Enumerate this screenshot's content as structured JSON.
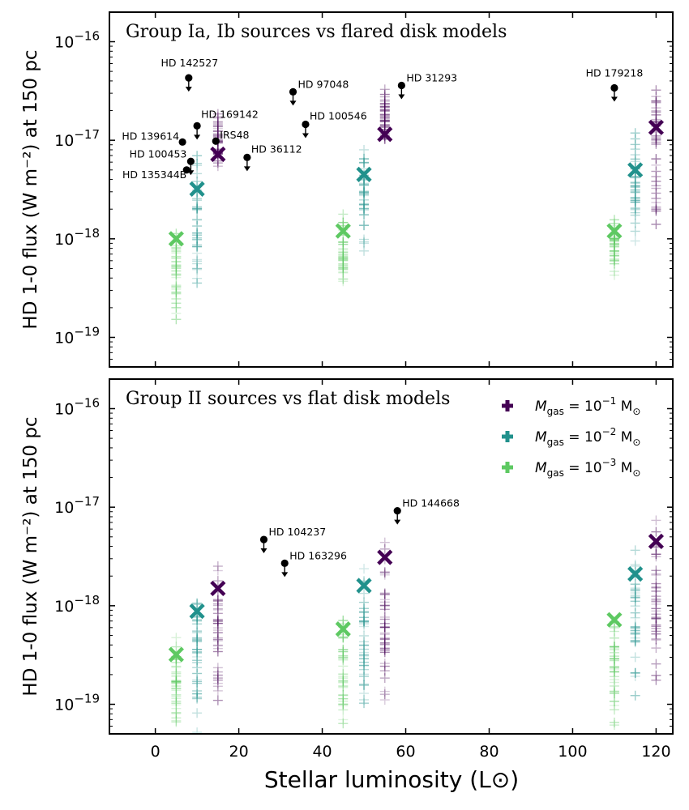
{
  "colors": {
    "high": "#440154",
    "mid": "#21918c",
    "low": "#5ec962",
    "source": "#000000"
  },
  "chart_data": [
    {
      "type": "scatter",
      "title": "Group Ia, Ib sources vs flared disk models",
      "ylabel": "HD 1-0 flux (W m⁻²) at 150 pc",
      "xlim": [
        -11,
        124
      ],
      "ylim_log10": [
        -19.3,
        -15.7
      ],
      "yticks_log10": [
        -19,
        -18,
        -17,
        -16
      ],
      "xticks": [
        0,
        20,
        40,
        60,
        80,
        100,
        120
      ],
      "yscale": "log",
      "series": [
        {
          "name": "M_gas = 10^-1 M_sun",
          "color_key": "high",
          "x": [
            15,
            55,
            120
          ],
          "median": [
            7.2e-18,
            1.15e-17,
            1.35e-17
          ],
          "spread_min": [
            4.3e-18,
            8.5e-18,
            1.15e-18
          ],
          "spread_max": [
            2.2e-17,
            3.9e-17,
            4.8e-17
          ]
        },
        {
          "name": "M_gas = 10^-2 M_sun",
          "color_key": "mid",
          "x": [
            10,
            50,
            115
          ],
          "median": [
            3.2e-18,
            4.5e-18,
            5e-18
          ],
          "spread_min": [
            3.1e-19,
            5.5e-19,
            7.5e-19
          ],
          "spread_max": [
            8.5e-18,
            1.15e-17,
            1.4e-17
          ]
        },
        {
          "name": "M_gas = 10^-3 M_sun",
          "color_key": "low",
          "x": [
            5,
            45,
            110
          ],
          "median": [
            1e-18,
            1.2e-18,
            1.2e-18
          ],
          "spread_min": [
            1.5e-19,
            2.8e-19,
            3.8e-19
          ],
          "spread_max": [
            1.5e-18,
            1.9e-18,
            1.9e-18
          ]
        }
      ],
      "sources": [
        {
          "name": "HD 142527",
          "x": 8,
          "y": 4.3e-17,
          "upper_limit": true
        },
        {
          "name": "HD 139614",
          "x": 6.5,
          "y": 9.6e-18,
          "upper_limit": false
        },
        {
          "name": "HD 100453",
          "x": 8.5,
          "y": 6.1e-18,
          "upper_limit": true
        },
        {
          "name": "HD 135344B",
          "x": 7.5,
          "y": 5e-18,
          "upper_limit": false
        },
        {
          "name": "HD 169142",
          "x": 10,
          "y": 1.4e-17,
          "upper_limit": true
        },
        {
          "name": "IRS48",
          "x": 14.5,
          "y": 9.8e-18,
          "upper_limit": false
        },
        {
          "name": "HD 36112",
          "x": 22,
          "y": 6.7e-18,
          "upper_limit": true
        },
        {
          "name": "HD 97048",
          "x": 33,
          "y": 3.1e-17,
          "upper_limit": true
        },
        {
          "name": "HD 100546",
          "x": 36,
          "y": 1.45e-17,
          "upper_limit": true
        },
        {
          "name": "HD 31293",
          "x": 59,
          "y": 3.6e-17,
          "upper_limit": true
        },
        {
          "name": "HD 179218",
          "x": 110,
          "y": 3.4e-17,
          "upper_limit": true
        }
      ]
    },
    {
      "type": "scatter",
      "title": "Group II sources vs flat disk models",
      "ylabel": "HD 1-0 flux (W m⁻²) at 150 pc",
      "xlabel": "Stellar luminosity (L⊙)",
      "xlim": [
        -11,
        124
      ],
      "ylim_log10": [
        -19.3,
        -15.7
      ],
      "yticks_log10": [
        -19,
        -18,
        -17,
        -16
      ],
      "xticks": [
        0,
        20,
        40,
        60,
        80,
        100,
        120
      ],
      "yscale": "log",
      "legend": {
        "position": "top-right",
        "entries": [
          {
            "color_key": "high",
            "base": "M",
            "sub": "gas",
            "eq": " = 10",
            "exp": "−1",
            "unit": " M",
            "unitsub": "⊙"
          },
          {
            "color_key": "mid",
            "base": "M",
            "sub": "gas",
            "eq": " = 10",
            "exp": "−2",
            "unit": " M",
            "unitsub": "⊙"
          },
          {
            "color_key": "low",
            "base": "M",
            "sub": "gas",
            "eq": " = 10",
            "exp": "−3",
            "unit": " M",
            "unitsub": "⊙"
          }
        ]
      },
      "series": [
        {
          "name": "M_gas = 10^-1 M_sun",
          "color_key": "high",
          "x": [
            15,
            55,
            120
          ],
          "median": [
            1.5e-18,
            3.1e-18,
            4.5e-18
          ],
          "spread_min": [
            5.5e-20,
            8e-20,
            1.2e-19
          ],
          "spread_max": [
            3.5e-18,
            7.5e-18,
            1.1e-17
          ]
        },
        {
          "name": "M_gas = 10^-2 M_sun",
          "color_key": "mid",
          "x": [
            10,
            50,
            115
          ],
          "median": [
            8.8e-19,
            1.6e-18,
            2.1e-18
          ],
          "spread_min": [
            5e-20,
            7e-20,
            1e-19
          ],
          "spread_max": [
            1.7e-18,
            3.4e-18,
            4.5e-18
          ]
        },
        {
          "name": "M_gas = 10^-3 M_sun",
          "color_key": "low",
          "x": [
            5,
            45,
            110
          ],
          "median": [
            3.2e-19,
            5.8e-19,
            7.2e-19
          ],
          "spread_min": [
            5e-20,
            5e-20,
            5e-20
          ],
          "spread_max": [
            5.5e-19,
            9.5e-19,
            1.1e-18
          ]
        }
      ],
      "sources": [
        {
          "name": "HD 104237",
          "x": 26,
          "y": 4.7e-18,
          "upper_limit": true
        },
        {
          "name": "HD 163296",
          "x": 31,
          "y": 2.7e-18,
          "upper_limit": true
        },
        {
          "name": "HD 144668",
          "x": 58,
          "y": 9.2e-18,
          "upper_limit": true
        }
      ]
    }
  ]
}
